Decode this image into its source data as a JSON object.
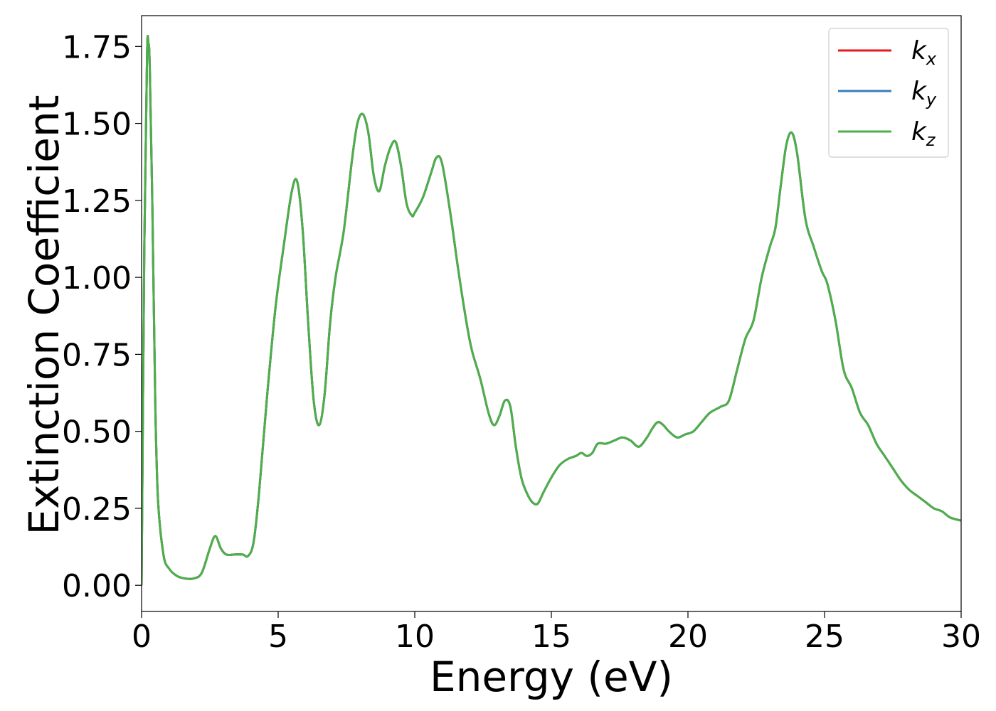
{
  "chart_data": {
    "type": "line",
    "xlabel": "Energy (eV)",
    "ylabel": "Extinction Coefficient",
    "xlim": [
      0,
      30
    ],
    "ylim": [
      -0.085,
      1.85
    ],
    "xticks": [
      0,
      5,
      10,
      15,
      20,
      25,
      30
    ],
    "yticks": [
      0.0,
      0.25,
      0.5,
      0.75,
      1.0,
      1.25,
      1.5,
      1.75
    ],
    "grid": false,
    "legend_position": "top-right",
    "x": [
      0.0,
      0.1,
      0.2,
      0.25,
      0.3,
      0.4,
      0.5,
      0.6,
      0.8,
      1.0,
      1.3,
      1.6,
      1.9,
      2.2,
      2.5,
      2.7,
      2.9,
      3.1,
      3.4,
      3.7,
      3.9,
      4.1,
      4.3,
      4.6,
      4.9,
      5.2,
      5.5,
      5.7,
      5.9,
      6.1,
      6.3,
      6.5,
      6.7,
      6.9,
      7.1,
      7.4,
      7.7,
      7.9,
      8.1,
      8.3,
      8.5,
      8.7,
      8.9,
      9.1,
      9.3,
      9.5,
      9.7,
      9.9,
      10.0,
      10.3,
      10.6,
      10.8,
      11.0,
      11.3,
      11.6,
      11.9,
      12.1,
      12.4,
      12.7,
      12.9,
      13.1,
      13.3,
      13.5,
      13.7,
      13.9,
      14.1,
      14.3,
      14.5,
      14.7,
      15.0,
      15.3,
      15.6,
      15.9,
      16.1,
      16.3,
      16.5,
      16.7,
      17.0,
      17.3,
      17.6,
      17.9,
      18.2,
      18.5,
      18.7,
      18.9,
      19.1,
      19.3,
      19.6,
      19.9,
      20.2,
      20.5,
      20.8,
      21.2,
      21.5,
      21.8,
      22.1,
      22.4,
      22.7,
      23.0,
      23.2,
      23.4,
      23.6,
      23.8,
      24.0,
      24.3,
      24.6,
      24.9,
      25.1,
      25.4,
      25.7,
      26.0,
      26.3,
      26.6,
      26.9,
      27.2,
      27.5,
      27.8,
      28.1,
      28.4,
      28.7,
      29.0,
      29.3,
      29.6,
      30.0
    ],
    "series": [
      {
        "name": "k_x",
        "color": "#e41a1c",
        "values": [
          0.0,
          1.1,
          1.72,
          1.76,
          1.68,
          1.2,
          0.6,
          0.28,
          0.1,
          0.055,
          0.03,
          0.022,
          0.022,
          0.04,
          0.12,
          0.16,
          0.12,
          0.1,
          0.1,
          0.1,
          0.095,
          0.14,
          0.3,
          0.62,
          0.9,
          1.1,
          1.28,
          1.31,
          1.15,
          0.85,
          0.6,
          0.52,
          0.62,
          0.85,
          1.0,
          1.15,
          1.38,
          1.5,
          1.53,
          1.47,
          1.33,
          1.28,
          1.36,
          1.42,
          1.44,
          1.36,
          1.24,
          1.2,
          1.21,
          1.26,
          1.34,
          1.39,
          1.37,
          1.21,
          1.02,
          0.85,
          0.76,
          0.67,
          0.56,
          0.52,
          0.55,
          0.6,
          0.58,
          0.45,
          0.35,
          0.3,
          0.27,
          0.265,
          0.3,
          0.35,
          0.39,
          0.41,
          0.42,
          0.43,
          0.42,
          0.43,
          0.46,
          0.46,
          0.47,
          0.48,
          0.47,
          0.45,
          0.48,
          0.51,
          0.53,
          0.52,
          0.5,
          0.48,
          0.49,
          0.5,
          0.53,
          0.56,
          0.58,
          0.6,
          0.7,
          0.8,
          0.86,
          1.0,
          1.1,
          1.16,
          1.3,
          1.43,
          1.47,
          1.4,
          1.19,
          1.1,
          1.02,
          0.98,
          0.86,
          0.7,
          0.64,
          0.56,
          0.52,
          0.46,
          0.42,
          0.38,
          0.34,
          0.31,
          0.29,
          0.27,
          0.25,
          0.24,
          0.22,
          0.21
        ]
      },
      {
        "name": "k_y",
        "color": "#377eb8",
        "values": [
          0.0,
          1.1,
          1.72,
          1.76,
          1.68,
          1.2,
          0.6,
          0.28,
          0.1,
          0.055,
          0.03,
          0.022,
          0.022,
          0.04,
          0.12,
          0.16,
          0.12,
          0.1,
          0.1,
          0.1,
          0.095,
          0.14,
          0.3,
          0.62,
          0.9,
          1.1,
          1.28,
          1.31,
          1.15,
          0.85,
          0.6,
          0.52,
          0.62,
          0.85,
          1.0,
          1.15,
          1.38,
          1.5,
          1.53,
          1.47,
          1.33,
          1.28,
          1.36,
          1.42,
          1.44,
          1.36,
          1.24,
          1.2,
          1.21,
          1.26,
          1.34,
          1.39,
          1.37,
          1.21,
          1.02,
          0.85,
          0.76,
          0.67,
          0.56,
          0.52,
          0.55,
          0.6,
          0.58,
          0.45,
          0.35,
          0.3,
          0.27,
          0.265,
          0.3,
          0.35,
          0.39,
          0.41,
          0.42,
          0.43,
          0.42,
          0.43,
          0.46,
          0.46,
          0.47,
          0.48,
          0.47,
          0.45,
          0.48,
          0.51,
          0.53,
          0.52,
          0.5,
          0.48,
          0.49,
          0.5,
          0.53,
          0.56,
          0.58,
          0.6,
          0.7,
          0.8,
          0.86,
          1.0,
          1.1,
          1.16,
          1.3,
          1.43,
          1.47,
          1.4,
          1.19,
          1.1,
          1.02,
          0.98,
          0.86,
          0.7,
          0.64,
          0.56,
          0.52,
          0.46,
          0.42,
          0.38,
          0.34,
          0.31,
          0.29,
          0.27,
          0.25,
          0.24,
          0.22,
          0.21
        ]
      },
      {
        "name": "k_z",
        "color": "#4daf4a",
        "values": [
          0.0,
          1.1,
          1.72,
          1.76,
          1.68,
          1.2,
          0.6,
          0.28,
          0.1,
          0.055,
          0.03,
          0.022,
          0.022,
          0.04,
          0.12,
          0.16,
          0.12,
          0.1,
          0.1,
          0.1,
          0.095,
          0.14,
          0.3,
          0.62,
          0.9,
          1.1,
          1.28,
          1.31,
          1.15,
          0.85,
          0.6,
          0.52,
          0.62,
          0.85,
          1.0,
          1.15,
          1.38,
          1.5,
          1.53,
          1.47,
          1.33,
          1.28,
          1.36,
          1.42,
          1.44,
          1.36,
          1.24,
          1.2,
          1.21,
          1.26,
          1.34,
          1.39,
          1.37,
          1.21,
          1.02,
          0.85,
          0.76,
          0.67,
          0.56,
          0.52,
          0.55,
          0.6,
          0.58,
          0.45,
          0.35,
          0.3,
          0.27,
          0.265,
          0.3,
          0.35,
          0.39,
          0.41,
          0.42,
          0.43,
          0.42,
          0.43,
          0.46,
          0.46,
          0.47,
          0.48,
          0.47,
          0.45,
          0.48,
          0.51,
          0.53,
          0.52,
          0.5,
          0.48,
          0.49,
          0.5,
          0.53,
          0.56,
          0.58,
          0.6,
          0.7,
          0.8,
          0.86,
          1.0,
          1.1,
          1.16,
          1.3,
          1.43,
          1.47,
          1.4,
          1.19,
          1.1,
          1.02,
          0.98,
          0.86,
          0.7,
          0.64,
          0.56,
          0.52,
          0.46,
          0.42,
          0.38,
          0.34,
          0.31,
          0.29,
          0.27,
          0.25,
          0.24,
          0.22,
          0.21
        ]
      }
    ],
    "legend": [
      {
        "base": "k",
        "sub": "x",
        "color": "#e41a1c"
      },
      {
        "base": "k",
        "sub": "y",
        "color": "#377eb8"
      },
      {
        "base": "k",
        "sub": "z",
        "color": "#4daf4a"
      }
    ]
  }
}
